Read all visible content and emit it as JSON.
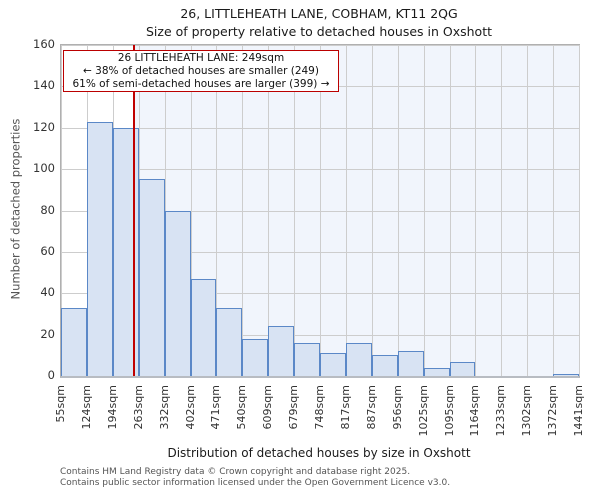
{
  "title": {
    "line1": "26, LITTLEHEATH LANE, COBHAM, KT11 2QG",
    "line2": "Size of property relative to detached houses in Oxshott"
  },
  "chart_data": {
    "type": "bar",
    "title": "26, LITTLEHEATH LANE, COBHAM, KT11 2QG",
    "subtitle": "Size of property relative to detached houses in Oxshott",
    "xlabel": "Distribution of detached houses by size in Oxshott",
    "ylabel": "Number of detached properties",
    "ylim": [
      0,
      160
    ],
    "yticks": [
      0,
      20,
      40,
      60,
      80,
      100,
      120,
      140,
      160
    ],
    "bin_edges_sqm": [
      55,
      124,
      194,
      263,
      332,
      402,
      471,
      540,
      609,
      679,
      748,
      817,
      887,
      956,
      1025,
      1095,
      1164,
      1233,
      1302,
      1372,
      1441
    ],
    "categories": [
      "55sqm",
      "124sqm",
      "194sqm",
      "263sqm",
      "332sqm",
      "402sqm",
      "471sqm",
      "540sqm",
      "609sqm",
      "679sqm",
      "748sqm",
      "817sqm",
      "887sqm",
      "956sqm",
      "1025sqm",
      "1095sqm",
      "1164sqm",
      "1233sqm",
      "1302sqm",
      "1372sqm",
      "1441sqm"
    ],
    "values": [
      33,
      123,
      120,
      95,
      80,
      47,
      33,
      18,
      24,
      16,
      11,
      16,
      10,
      12,
      4,
      7,
      0,
      0,
      0,
      1
    ],
    "marker_sqm": 249,
    "shaded_region": "right_of_marker",
    "grid": true,
    "legend": false,
    "annotation": {
      "line1": "26 LITTLEHEATH LANE: 249sqm",
      "line2": "← 38% of detached houses are smaller (249)",
      "line3": "61% of semi-detached houses are larger (399) →"
    },
    "colors": {
      "bar_fill": "#d8e3f3",
      "bar_border": "#5b88c7",
      "marker_line": "#c00000",
      "annotation_border": "#bb0000",
      "shade": "#f1f5fc",
      "gridline": "#cdcdcd",
      "axis": "#b0b0b0"
    }
  },
  "footer": {
    "line1": "Contains HM Land Registry data © Crown copyright and database right 2025.",
    "line2": "Contains public sector information licensed under the Open Government Licence v3.0."
  }
}
